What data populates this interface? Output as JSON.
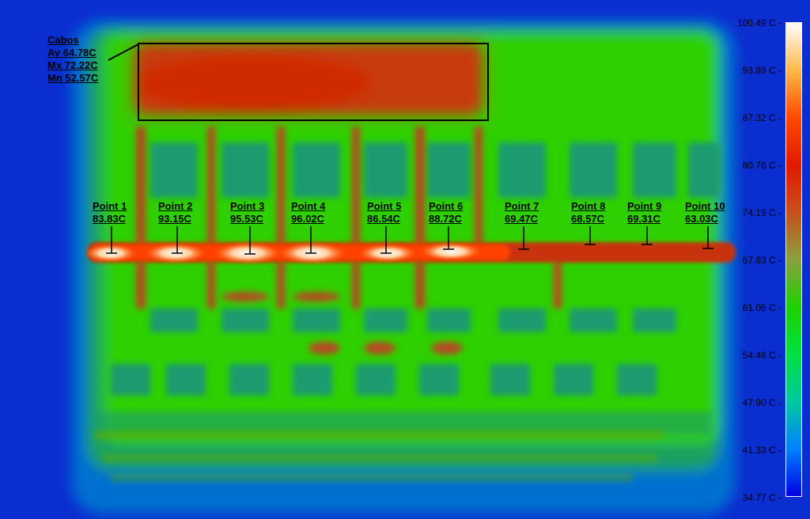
{
  "region": {
    "name": "Cabos",
    "av": "Av 64.78C",
    "mx": "Mx 72.22C",
    "mn": "Mn 52.57C"
  },
  "points": [
    {
      "name": "Point 1",
      "value": "83.83C"
    },
    {
      "name": "Point 2",
      "value": "93.15C"
    },
    {
      "name": "Point 3",
      "value": "95.53C"
    },
    {
      "name": "Point 4",
      "value": "96.02C"
    },
    {
      "name": "Point 5",
      "value": "86.54C"
    },
    {
      "name": "Point 6",
      "value": "88.72C"
    },
    {
      "name": "Point 7",
      "value": "69.47C"
    },
    {
      "name": "Point 8",
      "value": "68.57C"
    },
    {
      "name": "Point 9",
      "value": "69.31C"
    },
    {
      "name": "Point 10",
      "value": "63.03C"
    }
  ],
  "scale": {
    "ticks": [
      "100.49 C",
      "93.89 C",
      "87.32 C",
      "80.76 C",
      "74.19 C",
      "67.63 C",
      "61.06 C",
      "54.46 C",
      "47.90 C",
      "41.33 C",
      "34.77 C"
    ],
    "colors": [
      "#ffffff",
      "#ffb84a",
      "#ff4a00",
      "#e01a00",
      "#c8501a",
      "#8aa040",
      "#20d000",
      "#00e040",
      "#00c8a0",
      "#0080ff",
      "#0000e0"
    ]
  }
}
